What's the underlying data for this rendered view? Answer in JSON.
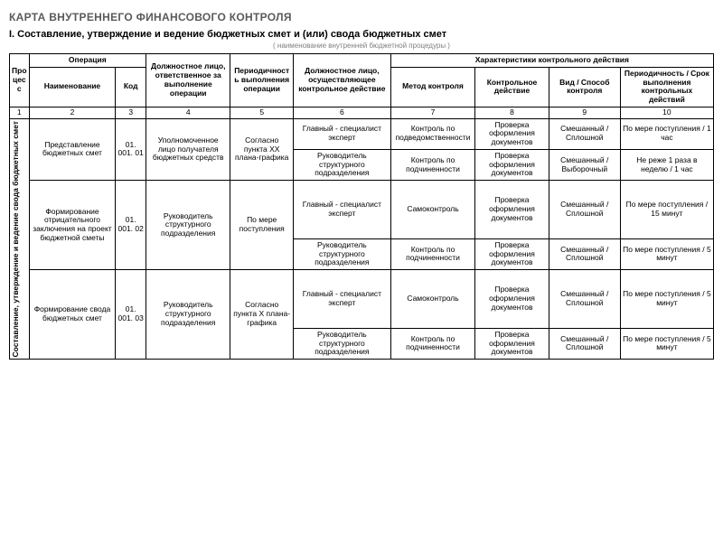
{
  "title": "КАРТА ВНУТРЕННЕГО ФИНАНСОВОГО КОНТРОЛЯ",
  "section": "I. Составление, утверждение и ведение бюджетных смет и (или) свода бюджетных смет",
  "subnote": "( наименование внутренней бюджетной процедуры )",
  "colors": {
    "title": "#5a5a5a",
    "border": "#000000",
    "text": "#000000",
    "background": "#ffffff"
  },
  "typography": {
    "title_fontsize_pt": 12,
    "section_fontsize_pt": 11,
    "cell_fontsize_pt": 8.5
  },
  "table": {
    "type": "table",
    "header": {
      "process": "Процесс",
      "operation": "Операция",
      "op_name": "Наименование",
      "op_code": "Код",
      "responsible": "Должностное лицо, ответственное за выполнение операции",
      "periodicity_op": "Периодичность выполнения операции",
      "control_person": "Должностное лицо, осуществляющее контрольное действие",
      "control_group": "Характеристики контрольного действия",
      "method": "Метод контроля",
      "control_action": "Контрольное действие",
      "kind": "Вид / Способ контроля",
      "period_action": "Периодичность / Срок выполнения контрольных действий"
    },
    "num_row": [
      "1",
      "2",
      "3",
      "4",
      "5",
      "6",
      "7",
      "8",
      "9",
      "10"
    ],
    "side_label": "Составление, утверждение и ведение свода бюджетных смет",
    "blocks": [
      {
        "op_name": "Представление бюджетных смет",
        "op_code": "01. 001. 01",
        "responsible": "Уполномоченное лицо получателя бюджетных средств",
        "period_op": "Согласно пункта XX плана-графика",
        "rows": [
          {
            "person": "Главный - специалист эксперт",
            "method": "Контроль по подведомственности",
            "action": "Проверка оформления документов",
            "kind": "Смешанный / Сплошной",
            "period": "По мере поступления / 1 час"
          },
          {
            "person": "Руководитель структурного подразделения",
            "method": "Контроль по подчиненности",
            "action": "Проверка оформления документов",
            "kind": "Смешанный / Выборочный",
            "period": "Не реже 1 раза в неделю / 1 час"
          }
        ]
      },
      {
        "op_name": "Формирование отрицательного заключения на проект бюджетной сметы",
        "op_code": "01. 001. 02",
        "responsible": "Руководитель структурного подразделения",
        "period_op": "По мере поступления",
        "rows": [
          {
            "person": "Главный - специалист эксперт",
            "method": "Самоконтроль",
            "action": "Проверка оформления документов",
            "kind": "Смешанный / Сплошной",
            "period": "По мере поступления / 15 минут"
          },
          {
            "person": "Руководитель структурного подразделения",
            "method": "Контроль по подчиненности",
            "action": "Проверка оформления документов",
            "kind": "Смешанный / Сплошной",
            "period": "По мере поступления / 5 минут"
          }
        ]
      },
      {
        "op_name": "Формирование свода бюджетных смет",
        "op_code": "01. 001. 03",
        "responsible": "Руководитель структурного подразделения",
        "period_op": "Согласно пункта X плана-графика",
        "rows": [
          {
            "person": "Главный - специалист эксперт",
            "method": "Самоконтроль",
            "action": "Проверка оформления документов",
            "kind": "Смешанный / Сплошной",
            "period": "По мере поступления / 5 минут"
          },
          {
            "person": "Руководитель структурного подразделения",
            "method": "Контроль по подчиненности",
            "action": "Проверка оформления документов",
            "kind": "Смешанный / Сплошной",
            "period": "По мере поступления / 5 минут"
          }
        ]
      }
    ]
  }
}
